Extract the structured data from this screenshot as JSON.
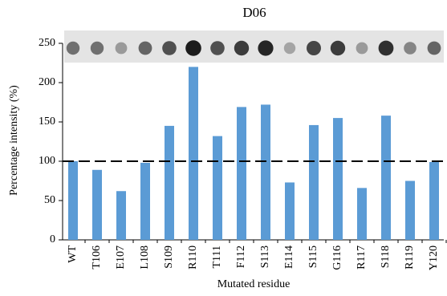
{
  "chart_data": {
    "type": "bar",
    "title": "D06",
    "y_label": "Percentage  intensity (%)",
    "x_label": "Mutated residue",
    "categories": [
      "WT",
      "T106",
      "E107",
      "L108",
      "S109",
      "R110",
      "T111",
      "F112",
      "S113",
      "E114",
      "S115",
      "G116",
      "R117",
      "S118",
      "R119",
      "Y120"
    ],
    "values": [
      100,
      89,
      62,
      98,
      145,
      220,
      132,
      169,
      172,
      73,
      146,
      155,
      66,
      158,
      75,
      99
    ],
    "color": "#5b9bd5",
    "reference_line": 100,
    "ylim": [
      0,
      250
    ],
    "yticks": [
      0,
      50,
      100,
      150,
      200,
      250
    ],
    "grid": false
  }
}
